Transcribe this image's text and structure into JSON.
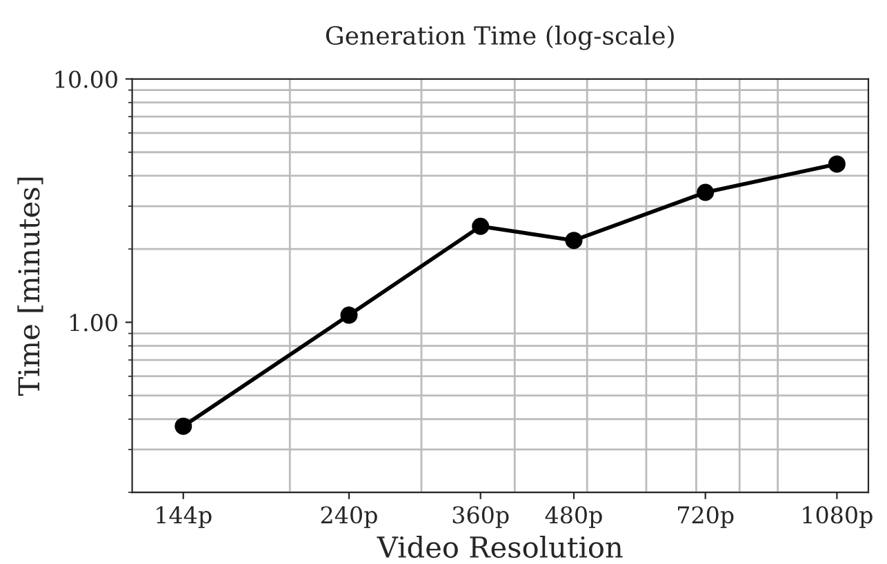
{
  "chart_data": {
    "type": "line",
    "title": "Generation Time (log-scale)",
    "xlabel": "Video Resolution",
    "ylabel": "Time [minutes]",
    "x": [
      144,
      240,
      360,
      480,
      720,
      1080
    ],
    "series": [
      {
        "color": "#000000",
        "values": [
          0.374,
          1.07,
          2.48,
          2.17,
          3.42,
          4.47
        ]
      }
    ],
    "log": "xy",
    "xlim": [
      123,
      1190
    ],
    "ylim": [
      0.2,
      10
    ],
    "xticks": [
      {
        "value": 144,
        "label": "144p"
      },
      {
        "value": 240,
        "label": "240p"
      },
      {
        "value": 360,
        "label": "360p"
      },
      {
        "value": 480,
        "label": "480p"
      },
      {
        "value": 720,
        "label": "720p"
      },
      {
        "value": 1080,
        "label": "1080p"
      }
    ],
    "yticks": [
      {
        "value": 1,
        "label": "1.00"
      },
      {
        "value": 10,
        "label": "10.00"
      }
    ],
    "grid": true,
    "marker": "circle",
    "line_style": "solid",
    "legend": false
  }
}
